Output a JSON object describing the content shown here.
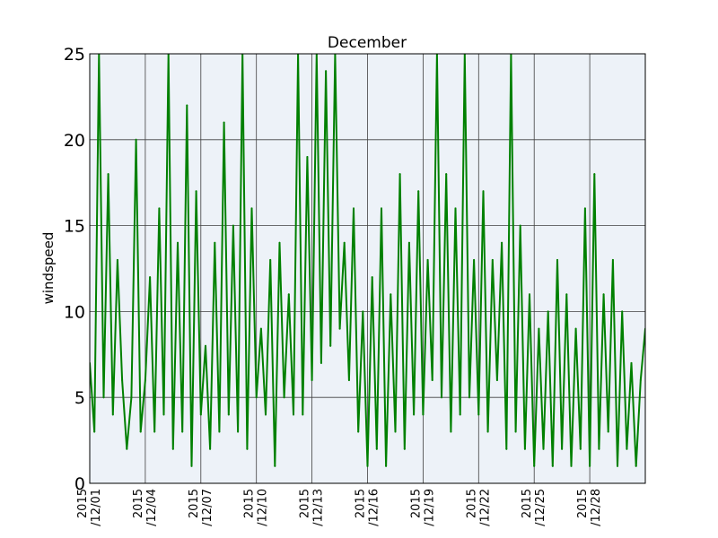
{
  "chart_data": {
    "type": "line",
    "title": "December",
    "xlabel": "",
    "ylabel": "windspeed",
    "ylim": [
      0,
      25
    ],
    "xlim": [
      "2015/12/01",
      "2015/12/31"
    ],
    "yticks": [
      "0",
      "5",
      "10",
      "15",
      "20",
      "25"
    ],
    "xticks": [
      {
        "date": "2015/12/01",
        "line1": "2015",
        "line2": "/12/01"
      },
      {
        "date": "2015/12/04",
        "line1": "2015",
        "line2": "/12/04"
      },
      {
        "date": "2015/12/07",
        "line1": "2015",
        "line2": "/12/07"
      },
      {
        "date": "2015/12/10",
        "line1": "2015",
        "line2": "/12/10"
      },
      {
        "date": "2015/12/13",
        "line1": "2015",
        "line2": "/12/13"
      },
      {
        "date": "2015/12/16",
        "line1": "2015",
        "line2": "/12/16"
      },
      {
        "date": "2015/12/19",
        "line1": "2015",
        "line2": "/12/19"
      },
      {
        "date": "2015/12/22",
        "line1": "2015",
        "line2": "/12/22"
      },
      {
        "date": "2015/12/25",
        "line1": "2015",
        "line2": "/12/25"
      },
      {
        "date": "2015/12/28",
        "line1": "2015",
        "line2": "/12/28"
      }
    ],
    "grid": true,
    "series": [
      {
        "color": "#008000",
        "x": [
          "2015/12/01 00:00",
          "2015/12/01 06:00",
          "2015/12/01 12:00",
          "2015/12/01 18:00",
          "2015/12/02 00:00",
          "2015/12/02 06:00",
          "2015/12/02 12:00",
          "2015/12/02 18:00",
          "2015/12/03 00:00",
          "2015/12/03 06:00",
          "2015/12/03 12:00",
          "2015/12/03 18:00",
          "2015/12/04 00:00",
          "2015/12/04 06:00",
          "2015/12/04 12:00",
          "2015/12/04 18:00",
          "2015/12/05 00:00",
          "2015/12/05 06:00",
          "2015/12/05 12:00",
          "2015/12/05 18:00",
          "2015/12/06 00:00",
          "2015/12/06 06:00",
          "2015/12/06 12:00",
          "2015/12/06 18:00",
          "2015/12/07 00:00",
          "2015/12/07 06:00",
          "2015/12/07 12:00",
          "2015/12/07 18:00",
          "2015/12/08 00:00",
          "2015/12/08 06:00",
          "2015/12/08 12:00",
          "2015/12/08 18:00",
          "2015/12/09 00:00",
          "2015/12/09 06:00",
          "2015/12/09 12:00",
          "2015/12/09 18:00",
          "2015/12/10 00:00",
          "2015/12/10 06:00",
          "2015/12/10 12:00",
          "2015/12/10 18:00",
          "2015/12/11 00:00",
          "2015/12/11 06:00",
          "2015/12/11 12:00",
          "2015/12/11 18:00",
          "2015/12/12 00:00",
          "2015/12/12 06:00",
          "2015/12/12 12:00",
          "2015/12/12 18:00",
          "2015/12/13 00:00",
          "2015/12/13 06:00",
          "2015/12/13 12:00",
          "2015/12/13 18:00",
          "2015/12/14 00:00",
          "2015/12/14 06:00",
          "2015/12/14 12:00",
          "2015/12/14 18:00",
          "2015/12/15 00:00",
          "2015/12/15 06:00",
          "2015/12/15 12:00",
          "2015/12/15 18:00",
          "2015/12/16 00:00",
          "2015/12/16 06:00",
          "2015/12/16 12:00",
          "2015/12/16 18:00",
          "2015/12/17 00:00",
          "2015/12/17 06:00",
          "2015/12/17 12:00",
          "2015/12/17 18:00",
          "2015/12/18 00:00",
          "2015/12/18 06:00",
          "2015/12/18 12:00",
          "2015/12/18 18:00",
          "2015/12/19 00:00",
          "2015/12/19 06:00",
          "2015/12/19 12:00",
          "2015/12/19 18:00",
          "2015/12/20 00:00",
          "2015/12/20 06:00",
          "2015/12/20 12:00",
          "2015/12/20 18:00",
          "2015/12/21 00:00",
          "2015/12/21 06:00",
          "2015/12/21 12:00",
          "2015/12/21 18:00",
          "2015/12/22 00:00",
          "2015/12/22 06:00",
          "2015/12/22 12:00",
          "2015/12/22 18:00",
          "2015/12/23 00:00",
          "2015/12/23 06:00",
          "2015/12/23 12:00",
          "2015/12/23 18:00",
          "2015/12/24 00:00",
          "2015/12/24 06:00",
          "2015/12/24 12:00",
          "2015/12/24 18:00",
          "2015/12/25 00:00",
          "2015/12/25 06:00",
          "2015/12/25 12:00",
          "2015/12/25 18:00",
          "2015/12/26 00:00",
          "2015/12/26 06:00",
          "2015/12/26 12:00",
          "2015/12/26 18:00",
          "2015/12/27 00:00",
          "2015/12/27 06:00",
          "2015/12/27 12:00",
          "2015/12/27 18:00",
          "2015/12/28 00:00",
          "2015/12/28 06:00",
          "2015/12/28 12:00",
          "2015/12/28 18:00",
          "2015/12/29 00:00",
          "2015/12/29 06:00",
          "2015/12/29 12:00",
          "2015/12/29 18:00",
          "2015/12/30 00:00",
          "2015/12/30 06:00",
          "2015/12/30 12:00",
          "2015/12/30 18:00",
          "2015/12/31 00:00"
        ],
        "values": [
          7,
          3,
          25,
          5,
          18,
          4,
          13,
          6,
          2,
          5,
          20,
          3,
          6,
          12,
          3,
          16,
          4,
          25,
          2,
          14,
          3,
          22,
          1,
          17,
          4,
          8,
          2,
          14,
          3,
          21,
          4,
          15,
          3,
          25,
          2,
          16,
          5,
          9,
          4,
          13,
          1,
          14,
          5,
          11,
          4,
          25,
          4,
          19,
          6,
          25,
          7,
          24,
          8,
          25,
          9,
          14,
          6,
          16,
          3,
          10,
          1,
          12,
          2,
          16,
          1,
          11,
          3,
          18,
          2,
          14,
          4,
          17,
          4,
          13,
          6,
          25,
          5,
          18,
          3,
          16,
          4,
          25,
          5,
          13,
          4,
          17,
          3,
          13,
          6,
          14,
          2,
          25,
          3,
          15,
          2,
          11,
          1,
          9,
          2,
          10,
          1,
          13,
          2,
          11,
          1,
          9,
          2,
          16,
          1,
          18,
          2,
          11,
          3,
          13,
          1,
          10,
          2,
          7,
          1,
          6,
          9
        ]
      }
    ]
  }
}
